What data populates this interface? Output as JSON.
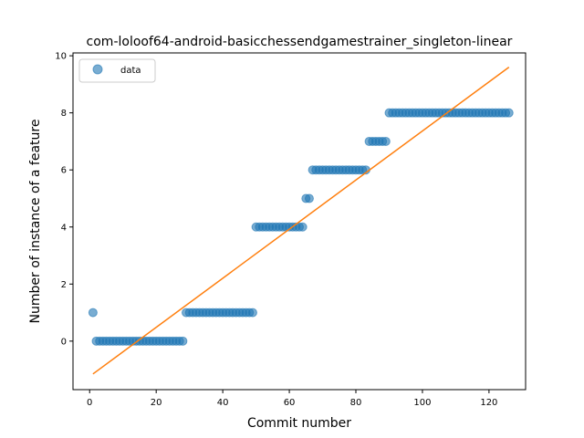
{
  "chart_data": {
    "type": "scatter",
    "title": "com-loloof64-android-basicchessendgamestrainer_singleton-linear",
    "xlabel": "Commit number",
    "ylabel": "Number of instance of a feature",
    "xlim": [
      -5,
      131
    ],
    "ylim": [
      -1.7,
      10.1
    ],
    "xticks": [
      0,
      20,
      40,
      60,
      80,
      100,
      120
    ],
    "yticks": [
      0,
      2,
      4,
      6,
      8,
      10
    ],
    "grid": false,
    "legend": {
      "placement": "top-left",
      "entries": [
        "data"
      ]
    },
    "colors": {
      "points": "#1f77b4",
      "fit": "#ff7f0e"
    },
    "series": [
      {
        "name": "data",
        "kind": "scatter",
        "segments": [
          {
            "x_from": 1,
            "x_to": 1,
            "y": 1
          },
          {
            "x_from": 2,
            "x_to": 28,
            "y": 0
          },
          {
            "x_from": 29,
            "x_to": 49,
            "y": 1
          },
          {
            "x_from": 50,
            "x_to": 64,
            "y": 4
          },
          {
            "x_from": 65,
            "x_to": 66,
            "y": 5
          },
          {
            "x_from": 67,
            "x_to": 83,
            "y": 6
          },
          {
            "x_from": 84,
            "x_to": 89,
            "y": 7
          },
          {
            "x_from": 90,
            "x_to": 126,
            "y": 8
          }
        ]
      },
      {
        "kind": "line",
        "points": [
          [
            1,
            -1.15
          ],
          [
            126,
            9.6
          ]
        ]
      }
    ]
  }
}
